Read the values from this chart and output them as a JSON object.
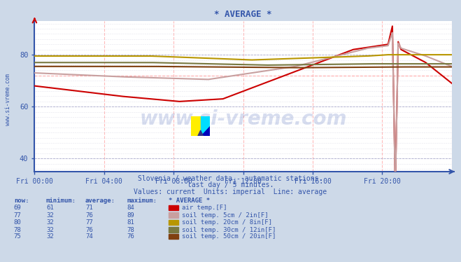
{
  "title": "* AVERAGE *",
  "background_color": "#cdd9e8",
  "plot_bg_color": "#ffffff",
  "grid_color_v": "#ffbbbb",
  "grid_color_h": "#aaaacc",
  "axis_color": "#3355aa",
  "text_color": "#3355aa",
  "subtitle_lines": [
    "Slovenia / weather data - automatic stations.",
    "last day / 5 minutes.",
    "Values: current  Units: imperial  Line: average"
  ],
  "watermark_text": "www.si-vreme.com",
  "watermark_color": "#2244aa",
  "watermark_alpha": 0.18,
  "ylabel_text": "www.si-vreme.com",
  "xlim": [
    0,
    288
  ],
  "ylim": [
    35,
    93
  ],
  "xtick_positions": [
    0,
    48,
    96,
    144,
    192,
    240
  ],
  "xtick_labels": [
    "Fri 00:00",
    "Fri 04:00",
    "Fri 08:00",
    "Fri 12:00",
    "Fri 16:00",
    "Fri 20:00"
  ],
  "ytick_positions": [
    40,
    60,
    80
  ],
  "ytick_labels": [
    "40",
    "60",
    "80"
  ],
  "series": [
    {
      "name": "air temp.[F]",
      "color": "#cc0000",
      "linewidth": 1.5
    },
    {
      "name": "soil temp. 5cm / 2in[F]",
      "color": "#c8a0a0",
      "linewidth": 1.5
    },
    {
      "name": "soil temp. 20cm / 8in[F]",
      "color": "#b89600",
      "linewidth": 1.5
    },
    {
      "name": "soil temp. 30cm / 12in[F]",
      "color": "#787840",
      "linewidth": 1.5
    },
    {
      "name": "soil temp. 50cm / 20in[F]",
      "color": "#804010",
      "linewidth": 1.5
    }
  ],
  "legend_data": [
    {
      "now": "69",
      "min": "61",
      "avg": "71",
      "max": "84",
      "color": "#cc0000",
      "label": "air temp.[F]"
    },
    {
      "now": "77",
      "min": "32",
      "avg": "76",
      "max": "89",
      "color": "#c8a0a0",
      "label": "soil temp. 5cm / 2in[F]"
    },
    {
      "now": "80",
      "min": "32",
      "avg": "77",
      "max": "81",
      "color": "#b89600",
      "label": "soil temp. 20cm / 8in[F]"
    },
    {
      "now": "78",
      "min": "32",
      "avg": "76",
      "max": "78",
      "color": "#787840",
      "label": "soil temp. 30cm / 12in[F]"
    },
    {
      "now": "75",
      "min": "32",
      "avg": "74",
      "max": "76",
      "color": "#804010",
      "label": "soil temp. 50cm / 20in[F]"
    }
  ]
}
